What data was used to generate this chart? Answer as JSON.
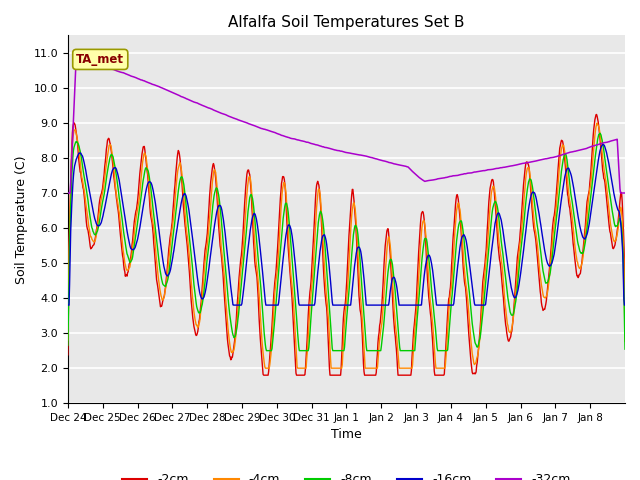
{
  "title": "Alfalfa Soil Temperatures Set B",
  "ylabel": "Soil Temperature (C)",
  "xlabel": "Time",
  "ylim": [
    1.0,
    11.5
  ],
  "yticks": [
    1.0,
    2.0,
    3.0,
    4.0,
    5.0,
    6.0,
    7.0,
    8.0,
    9.0,
    10.0,
    11.0
  ],
  "colors": {
    "-2cm": "#dd0000",
    "-4cm": "#ff8800",
    "-8cm": "#00cc00",
    "-16cm": "#0000cc",
    "-32cm": "#aa00cc"
  },
  "background_color": "#e8e8e8",
  "grid_color": "#ffffff",
  "ta_met_box_color": "#ffffaa",
  "ta_met_text_color": "#880000",
  "tick_labels": [
    "Dec 24",
    "Dec 25",
    "Dec 26",
    "Dec 27",
    "Dec 28",
    "Dec 29",
    "Dec 30",
    "Dec 31",
    "Jan 1",
    "Jan 2",
    "Jan 3",
    "Jan 4",
    "Jan 5",
    "Jan 6",
    "Jan 7",
    "Jan 8"
  ]
}
